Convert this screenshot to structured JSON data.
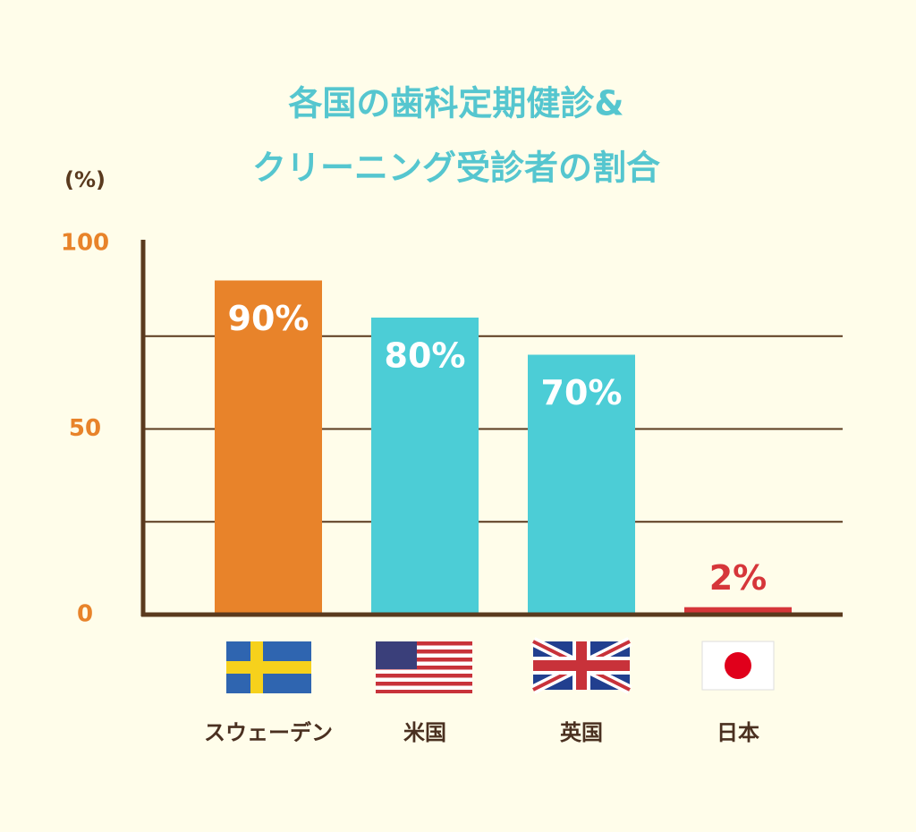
{
  "chart_data": {
    "type": "bar",
    "title": [
      "各国の歯科定期健診&",
      "クリーニング受診者の割合"
    ],
    "y_label": "(%)",
    "categories": [
      "スウェーデン",
      "米国",
      "英国",
      "日本"
    ],
    "values": [
      90,
      80,
      70,
      2
    ],
    "value_labels": [
      "90%",
      "80%",
      "70%",
      "2%"
    ],
    "colors": [
      "#e8832a",
      "#4ccdd6",
      "#4ccdd6",
      "#d6363a"
    ],
    "ylim": [
      0,
      100
    ],
    "yticks": [
      0,
      50,
      100
    ],
    "ygrid": [
      25,
      50,
      75
    ]
  }
}
